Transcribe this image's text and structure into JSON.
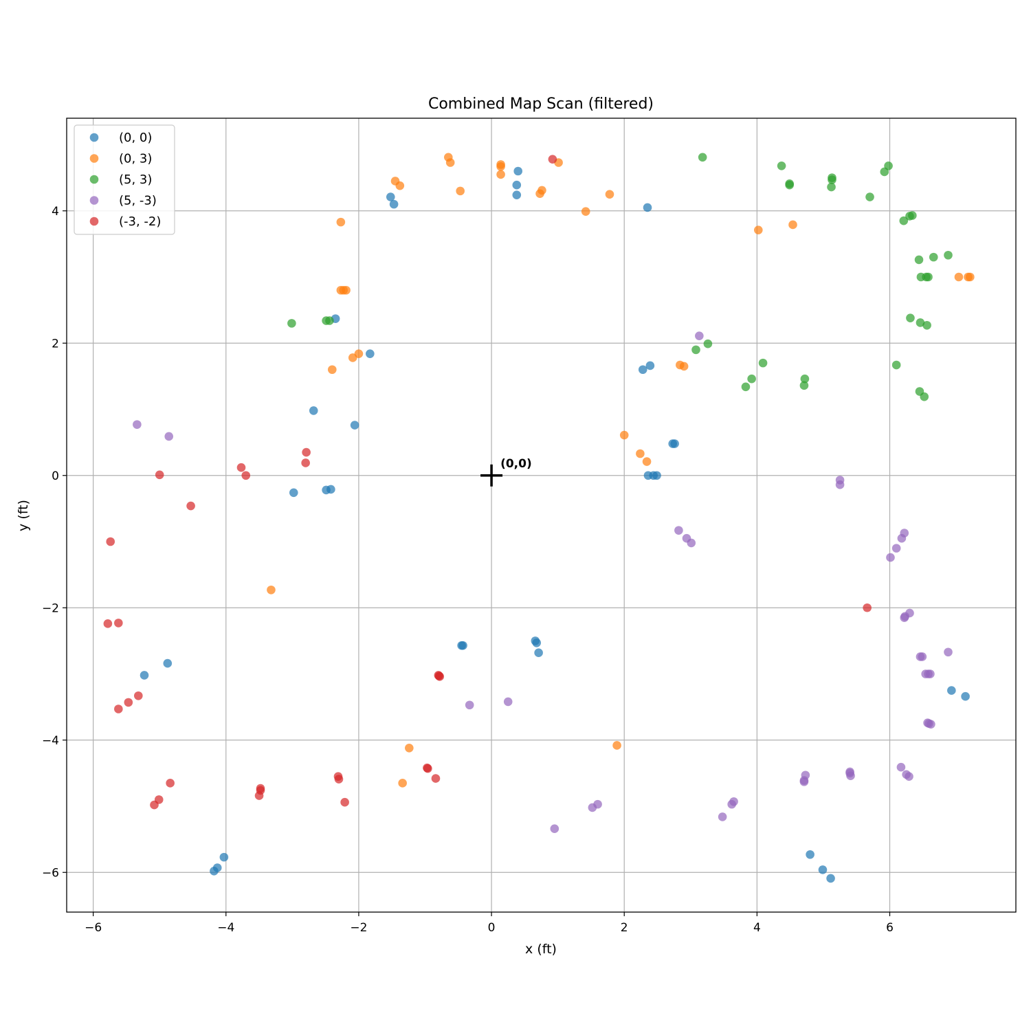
{
  "chart_data": {
    "type": "scatter",
    "title": "Combined Map Scan (filtered)",
    "xlabel": "x (ft)",
    "ylabel": "y (ft)",
    "xlim": [
      -6.4,
      7.9
    ],
    "ylim": [
      -6.6,
      5.4
    ],
    "xticks": [
      -6,
      -4,
      -2,
      0,
      2,
      4,
      6
    ],
    "yticks": [
      -6,
      -4,
      -2,
      0,
      2,
      4
    ],
    "grid": true,
    "legend_position": "top-left",
    "origin_marker": {
      "x": 0,
      "y": 0,
      "label": "(0,0)"
    },
    "series": [
      {
        "name": "(0, 0)",
        "color": "#1f77b4",
        "points": [
          [
            -1.52,
            4.21
          ],
          [
            -1.47,
            4.1
          ],
          [
            0.38,
            4.39
          ],
          [
            0.4,
            4.6
          ],
          [
            0.38,
            4.24
          ],
          [
            2.35,
            4.05
          ],
          [
            -2.35,
            2.37
          ],
          [
            -1.83,
            1.84
          ],
          [
            -2.68,
            0.98
          ],
          [
            -2.06,
            0.76
          ],
          [
            -2.98,
            -0.26
          ],
          [
            -2.49,
            -0.22
          ],
          [
            -2.42,
            -0.21
          ],
          [
            2.28,
            1.6
          ],
          [
            2.39,
            1.66
          ],
          [
            2.73,
            0.48
          ],
          [
            2.76,
            0.48
          ],
          [
            2.36,
            0.0
          ],
          [
            2.44,
            0.0
          ],
          [
            2.49,
            0.0
          ],
          [
            -0.45,
            -2.57
          ],
          [
            -0.43,
            -2.57
          ],
          [
            0.66,
            -2.5
          ],
          [
            0.68,
            -2.53
          ],
          [
            0.71,
            -2.68
          ],
          [
            -5.23,
            -3.02
          ],
          [
            -4.88,
            -2.84
          ],
          [
            6.93,
            -3.25
          ],
          [
            7.14,
            -3.34
          ],
          [
            -4.03,
            -5.77
          ],
          [
            -4.13,
            -5.93
          ],
          [
            -4.18,
            -5.98
          ],
          [
            4.8,
            -5.73
          ],
          [
            4.99,
            -5.96
          ],
          [
            5.11,
            -6.09
          ]
        ]
      },
      {
        "name": "(0, 3)",
        "color": "#ff7f0e",
        "points": [
          [
            -0.65,
            4.81
          ],
          [
            -0.62,
            4.73
          ],
          [
            -0.47,
            4.3
          ],
          [
            -1.45,
            4.45
          ],
          [
            -1.38,
            4.38
          ],
          [
            0.14,
            4.7
          ],
          [
            0.14,
            4.67
          ],
          [
            0.14,
            4.55
          ],
          [
            1.01,
            4.73
          ],
          [
            0.76,
            4.31
          ],
          [
            0.73,
            4.26
          ],
          [
            1.42,
            3.99
          ],
          [
            1.78,
            4.25
          ],
          [
            -2.27,
            3.83
          ],
          [
            -2.27,
            2.8
          ],
          [
            -2.23,
            2.8
          ],
          [
            -2.19,
            2.8
          ],
          [
            -2.09,
            1.78
          ],
          [
            -2.0,
            1.84
          ],
          [
            -2.4,
            1.6
          ],
          [
            4.02,
            3.71
          ],
          [
            4.54,
            3.79
          ],
          [
            7.04,
            3.0
          ],
          [
            7.18,
            3.0
          ],
          [
            7.21,
            3.0
          ],
          [
            2.84,
            1.67
          ],
          [
            2.9,
            1.65
          ],
          [
            2.0,
            0.61
          ],
          [
            2.24,
            0.33
          ],
          [
            2.34,
            0.21
          ],
          [
            -3.32,
            -1.73
          ],
          [
            -1.24,
            -4.12
          ],
          [
            -1.34,
            -4.65
          ],
          [
            1.89,
            -4.08
          ]
        ]
      },
      {
        "name": "(5, 3)",
        "color": "#2ca02c",
        "points": [
          [
            3.18,
            4.81
          ],
          [
            4.37,
            4.68
          ],
          [
            4.49,
            4.41
          ],
          [
            4.49,
            4.39
          ],
          [
            5.13,
            4.5
          ],
          [
            5.13,
            4.47
          ],
          [
            5.12,
            4.36
          ],
          [
            5.7,
            4.21
          ],
          [
            5.92,
            4.59
          ],
          [
            5.98,
            4.68
          ],
          [
            6.21,
            3.85
          ],
          [
            6.3,
            3.92
          ],
          [
            6.34,
            3.93
          ],
          [
            6.44,
            3.26
          ],
          [
            6.47,
            3.0
          ],
          [
            6.55,
            3.0
          ],
          [
            6.58,
            3.0
          ],
          [
            6.66,
            3.3
          ],
          [
            6.88,
            3.33
          ],
          [
            -3.01,
            2.3
          ],
          [
            -2.49,
            2.34
          ],
          [
            -2.44,
            2.34
          ],
          [
            6.31,
            2.38
          ],
          [
            6.46,
            2.31
          ],
          [
            6.56,
            2.27
          ],
          [
            3.08,
            1.9
          ],
          [
            3.26,
            1.99
          ],
          [
            4.09,
            1.7
          ],
          [
            3.92,
            1.46
          ],
          [
            3.83,
            1.34
          ],
          [
            4.72,
            1.46
          ],
          [
            4.71,
            1.36
          ],
          [
            6.1,
            1.67
          ],
          [
            6.45,
            1.27
          ],
          [
            6.52,
            1.19
          ]
        ]
      },
      {
        "name": "(5, -3)",
        "color": "#9467bd",
        "points": [
          [
            -5.34,
            0.77
          ],
          [
            -4.86,
            0.59
          ],
          [
            3.13,
            2.11
          ],
          [
            5.25,
            -0.07
          ],
          [
            5.25,
            -0.14
          ],
          [
            2.82,
            -0.83
          ],
          [
            2.94,
            -0.95
          ],
          [
            3.01,
            -1.02
          ],
          [
            6.01,
            -1.24
          ],
          [
            6.1,
            -1.1
          ],
          [
            6.18,
            -0.95
          ],
          [
            6.22,
            -0.87
          ],
          [
            6.3,
            -2.08
          ],
          [
            6.22,
            -2.15
          ],
          [
            6.23,
            -2.13
          ],
          [
            6.46,
            -2.74
          ],
          [
            6.49,
            -2.74
          ],
          [
            6.88,
            -2.67
          ],
          [
            6.54,
            -3.0
          ],
          [
            6.58,
            -3.0
          ],
          [
            6.61,
            -3.0
          ],
          [
            6.57,
            -3.74
          ],
          [
            6.59,
            -3.75
          ],
          [
            6.62,
            -3.76
          ],
          [
            -0.33,
            -3.47
          ],
          [
            0.25,
            -3.42
          ],
          [
            6.17,
            -4.41
          ],
          [
            6.25,
            -4.52
          ],
          [
            6.29,
            -4.55
          ],
          [
            4.73,
            -4.53
          ],
          [
            4.71,
            -4.61
          ],
          [
            4.71,
            -4.63
          ],
          [
            5.4,
            -4.48
          ],
          [
            5.4,
            -4.5
          ],
          [
            5.41,
            -4.54
          ],
          [
            3.48,
            -5.16
          ],
          [
            3.62,
            -4.97
          ],
          [
            3.65,
            -4.93
          ],
          [
            1.52,
            -5.02
          ],
          [
            1.6,
            -4.97
          ],
          [
            0.95,
            -5.34
          ]
        ]
      },
      {
        "name": "(-3, -2)",
        "color": "#d62728",
        "points": [
          [
            0.92,
            4.78
          ],
          [
            -2.79,
            0.35
          ],
          [
            -2.8,
            0.19
          ],
          [
            -3.77,
            0.12
          ],
          [
            -3.7,
            0.0
          ],
          [
            -5.0,
            0.01
          ],
          [
            -4.53,
            -0.46
          ],
          [
            -5.74,
            -1.0
          ],
          [
            -5.78,
            -2.24
          ],
          [
            -5.62,
            -2.23
          ],
          [
            -5.32,
            -3.33
          ],
          [
            -5.47,
            -3.43
          ],
          [
            -5.62,
            -3.53
          ],
          [
            5.66,
            -2.0
          ],
          [
            -0.8,
            -3.02
          ],
          [
            -0.78,
            -3.04
          ],
          [
            -0.79,
            -3.03
          ],
          [
            -0.97,
            -4.42
          ],
          [
            -0.96,
            -4.43
          ],
          [
            -0.84,
            -4.58
          ],
          [
            -2.31,
            -4.55
          ],
          [
            -2.3,
            -4.59
          ],
          [
            -2.21,
            -4.94
          ],
          [
            -3.48,
            -4.73
          ],
          [
            -3.48,
            -4.76
          ],
          [
            -3.5,
            -4.84
          ],
          [
            -4.84,
            -4.65
          ],
          [
            -5.01,
            -4.9
          ],
          [
            -5.08,
            -4.98
          ]
        ]
      }
    ]
  }
}
